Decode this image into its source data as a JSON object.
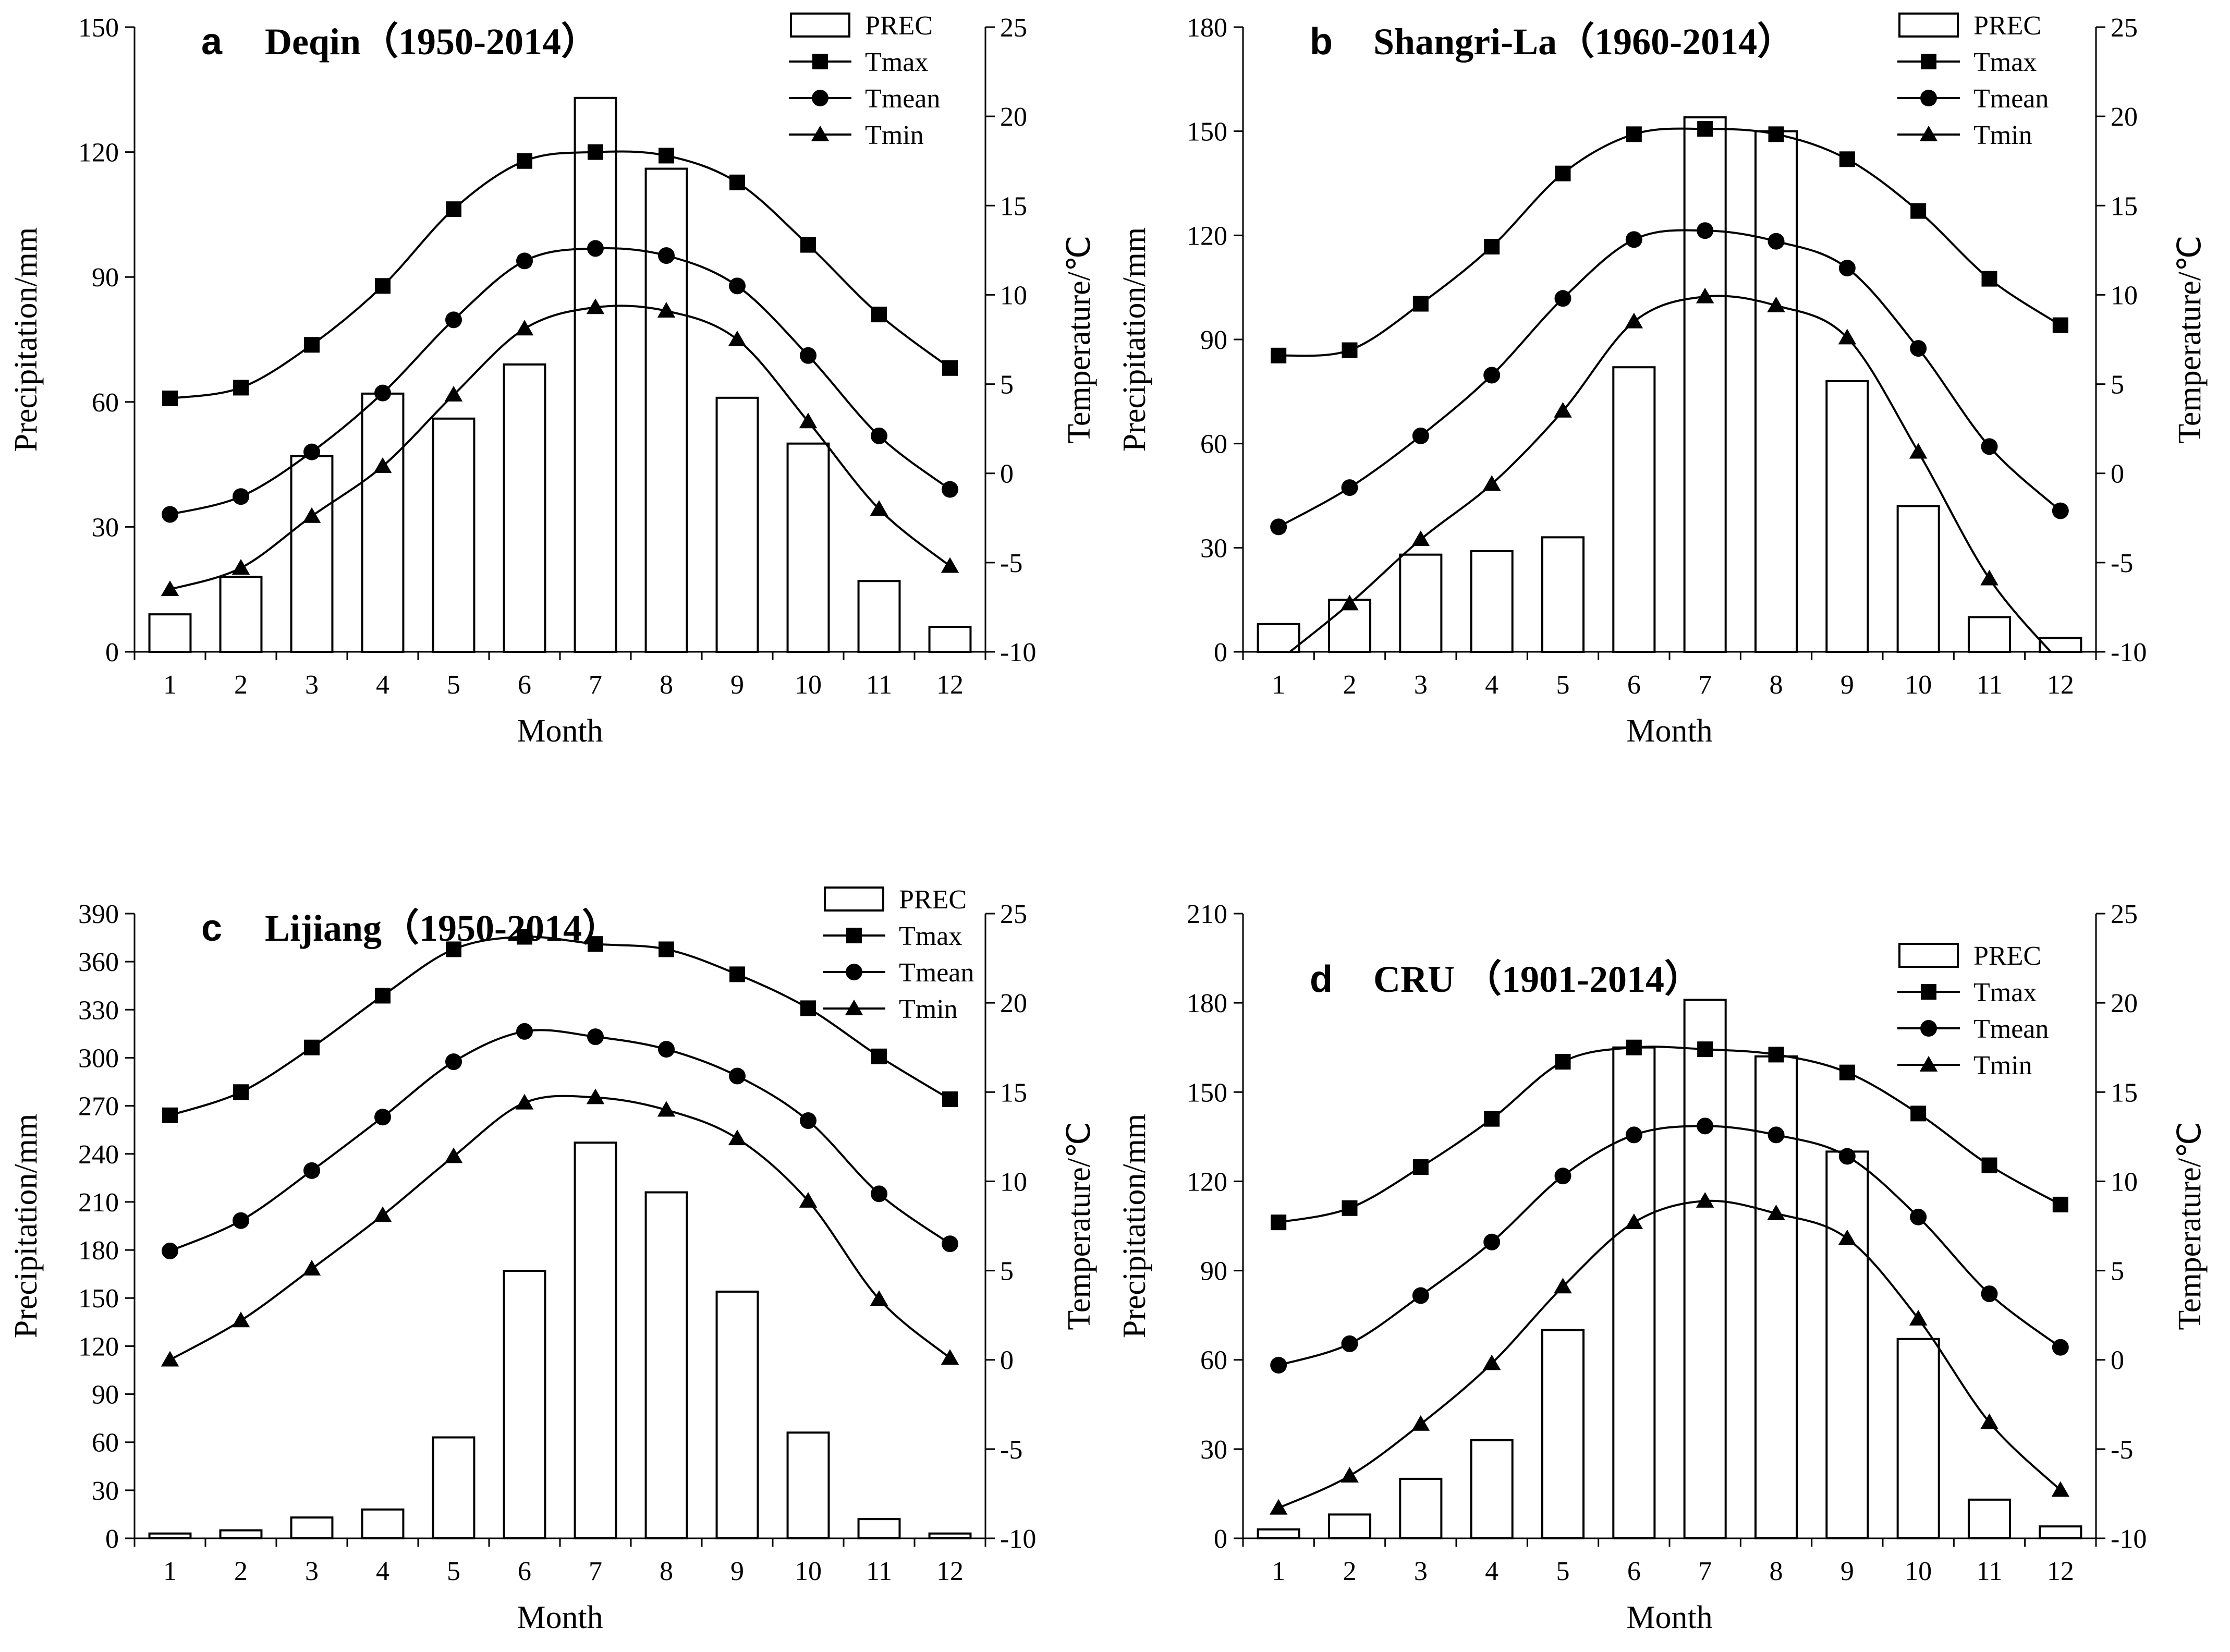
{
  "chart_data": [
    {
      "type": "bar",
      "letter": "a",
      "title": "Deqin（1950-2014）",
      "xlabel": "Month",
      "ylabel": "Precipitation/mm",
      "y2label": "Temperature/℃",
      "categories": [
        "1",
        "2",
        "3",
        "4",
        "5",
        "6",
        "7",
        "8",
        "9",
        "10",
        "11",
        "12"
      ],
      "ylim": [
        0,
        150
      ],
      "yticks": [
        0,
        30,
        60,
        90,
        120,
        150
      ],
      "y2lim": [
        -10,
        25
      ],
      "y2ticks": [
        -10,
        -5,
        0,
        5,
        10,
        15,
        20,
        25
      ],
      "series": [
        {
          "name": "PREC",
          "type": "bar",
          "axis": "left",
          "values": [
            9,
            18,
            47,
            62,
            56,
            69,
            133,
            116,
            61,
            50,
            17,
            6
          ]
        },
        {
          "name": "Tmax",
          "type": "line",
          "marker": "square",
          "axis": "right",
          "values": [
            4.2,
            4.8,
            7.2,
            10.5,
            14.8,
            17.5,
            18.0,
            17.8,
            16.3,
            12.8,
            8.9,
            5.9
          ]
        },
        {
          "name": "Tmean",
          "type": "line",
          "marker": "circle",
          "axis": "right",
          "values": [
            -2.3,
            -1.3,
            1.2,
            4.5,
            8.6,
            11.9,
            12.6,
            12.2,
            10.5,
            6.6,
            2.1,
            -0.9
          ]
        },
        {
          "name": "Tmin",
          "type": "line",
          "marker": "triangle",
          "axis": "right",
          "values": [
            -6.5,
            -5.3,
            -2.4,
            0.4,
            4.4,
            8.1,
            9.3,
            9.1,
            7.5,
            2.9,
            -2.0,
            -5.2
          ]
        }
      ]
    },
    {
      "type": "bar",
      "letter": "b",
      "title": "Shangri-La（1960-2014）",
      "xlabel": "Month",
      "ylabel": "Precipitation/mm",
      "y2label": "Temperature/℃",
      "categories": [
        "1",
        "2",
        "3",
        "4",
        "5",
        "6",
        "7",
        "8",
        "9",
        "10",
        "11",
        "12"
      ],
      "ylim": [
        0,
        180
      ],
      "yticks": [
        0,
        30,
        60,
        90,
        120,
        150,
        180
      ],
      "y2lim": [
        -10,
        25
      ],
      "y2ticks": [
        -10,
        -5,
        0,
        5,
        10,
        15,
        20,
        25
      ],
      "series": [
        {
          "name": "PREC",
          "type": "bar",
          "axis": "left",
          "values": [
            8,
            15,
            28,
            29,
            33,
            82,
            154,
            150,
            78,
            42,
            10,
            4
          ]
        },
        {
          "name": "Tmax",
          "type": "line",
          "marker": "square",
          "axis": "right",
          "values": [
            6.6,
            6.9,
            9.5,
            12.7,
            16.8,
            19.0,
            19.3,
            19.0,
            17.6,
            14.7,
            10.9,
            8.3
          ]
        },
        {
          "name": "Tmean",
          "type": "line",
          "marker": "circle",
          "axis": "right",
          "values": [
            -3.0,
            -0.8,
            2.1,
            5.5,
            9.8,
            13.1,
            13.6,
            13.0,
            11.5,
            7.0,
            1.5,
            -2.1
          ]
        },
        {
          "name": "Tmin",
          "type": "line",
          "marker": "triangle",
          "axis": "right",
          "values": [
            -10.5,
            -7.3,
            -3.7,
            -0.6,
            3.5,
            8.5,
            9.9,
            9.4,
            7.6,
            1.2,
            -5.9,
            -10.6
          ]
        }
      ]
    },
    {
      "type": "bar",
      "letter": "c",
      "title": "Lijiang（1950-2014）",
      "xlabel": "Month",
      "ylabel": "Precipitation/mm",
      "y2label": "Temperature/℃",
      "categories": [
        "1",
        "2",
        "3",
        "4",
        "5",
        "6",
        "7",
        "8",
        "9",
        "10",
        "11",
        "12"
      ],
      "ylim": [
        0,
        390
      ],
      "yticks": [
        0,
        30,
        60,
        90,
        120,
        150,
        180,
        210,
        240,
        270,
        300,
        330,
        360,
        390
      ],
      "y2lim": [
        -10,
        25
      ],
      "y2ticks": [
        -10,
        -5,
        0,
        5,
        10,
        15,
        20,
        25
      ],
      "series": [
        {
          "name": "PREC",
          "type": "bar",
          "axis": "left",
          "values": [
            3,
            5,
            13,
            18,
            63,
            167,
            247,
            216,
            154,
            66,
            12,
            3
          ]
        },
        {
          "name": "Tmax",
          "type": "line",
          "marker": "square",
          "axis": "right",
          "values": [
            13.7,
            15.0,
            17.5,
            20.4,
            23.0,
            23.7,
            23.3,
            23.0,
            21.6,
            19.7,
            17.0,
            14.6
          ]
        },
        {
          "name": "Tmean",
          "type": "line",
          "marker": "circle",
          "axis": "right",
          "values": [
            6.1,
            7.8,
            10.6,
            13.6,
            16.7,
            18.4,
            18.1,
            17.4,
            15.9,
            13.4,
            9.3,
            6.5
          ]
        },
        {
          "name": "Tmin",
          "type": "line",
          "marker": "triangle",
          "axis": "right",
          "values": [
            0.0,
            2.2,
            5.1,
            8.1,
            11.4,
            14.4,
            14.7,
            14.0,
            12.4,
            8.9,
            3.4,
            0.1
          ]
        }
      ]
    },
    {
      "type": "bar",
      "letter": "d",
      "title": "CRU （1901-2014）",
      "xlabel": "Month",
      "ylabel": "Precipitation/mm",
      "y2label": "Temperature/℃",
      "categories": [
        "1",
        "2",
        "3",
        "4",
        "5",
        "6",
        "7",
        "8",
        "9",
        "10",
        "11",
        "12"
      ],
      "ylim": [
        0,
        210
      ],
      "yticks": [
        0,
        30,
        60,
        90,
        120,
        150,
        180,
        210
      ],
      "y2lim": [
        -10,
        25
      ],
      "y2ticks": [
        -10,
        -5,
        0,
        5,
        10,
        15,
        20,
        25
      ],
      "series": [
        {
          "name": "PREC",
          "type": "bar",
          "axis": "left",
          "values": [
            3,
            8,
            20,
            33,
            70,
            165,
            181,
            162,
            130,
            67,
            13,
            4
          ]
        },
        {
          "name": "Tmax",
          "type": "line",
          "marker": "square",
          "axis": "right",
          "values": [
            7.7,
            8.5,
            10.8,
            13.5,
            16.7,
            17.5,
            17.4,
            17.1,
            16.1,
            13.8,
            10.9,
            8.7
          ]
        },
        {
          "name": "Tmean",
          "type": "line",
          "marker": "circle",
          "axis": "right",
          "values": [
            -0.3,
            0.9,
            3.6,
            6.6,
            10.3,
            12.6,
            13.1,
            12.6,
            11.4,
            8.0,
            3.7,
            0.7
          ]
        },
        {
          "name": "Tmin",
          "type": "line",
          "marker": "triangle",
          "axis": "right",
          "values": [
            -8.3,
            -6.5,
            -3.6,
            -0.2,
            4.1,
            7.7,
            8.9,
            8.2,
            6.8,
            2.3,
            -3.5,
            -7.3
          ]
        }
      ]
    }
  ]
}
